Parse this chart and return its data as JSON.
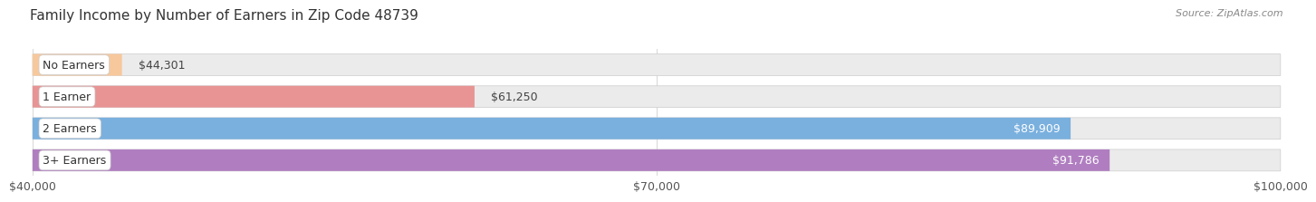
{
  "title": "Family Income by Number of Earners in Zip Code 48739",
  "source": "Source: ZipAtlas.com",
  "categories": [
    "No Earners",
    "1 Earner",
    "2 Earners",
    "3+ Earners"
  ],
  "values": [
    44301,
    61250,
    89909,
    91786
  ],
  "bar_colors": [
    "#f7c89c",
    "#e89494",
    "#7ab0de",
    "#b07ec0"
  ],
  "label_bg_colors": [
    "#f0f0f0",
    "#f0f0f0",
    "#f0f0f0",
    "#f0f0f0"
  ],
  "xmin": 40000,
  "xmax": 100000,
  "xticks": [
    40000,
    70000,
    100000
  ],
  "xtick_labels": [
    "$40,000",
    "$70,000",
    "$100,000"
  ],
  "value_labels": [
    "$44,301",
    "$61,250",
    "$89,909",
    "$91,786"
  ],
  "background_color": "#ffffff",
  "bar_background_color": "#ebebeb",
  "title_fontsize": 11,
  "source_fontsize": 8,
  "bar_label_fontsize": 9,
  "value_label_fontsize": 9,
  "tick_fontsize": 9
}
